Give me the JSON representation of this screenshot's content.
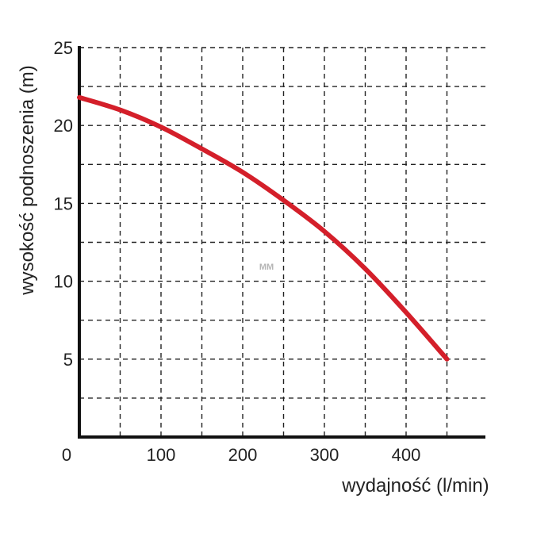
{
  "chart_data": {
    "type": "line",
    "title": "",
    "xlabel": "wydajność (l/min)",
    "ylabel": "wysokość podnoszenia (m)",
    "xlim": [
      0,
      500
    ],
    "ylim": [
      0,
      25
    ],
    "x_ticks": [
      0,
      100,
      200,
      300,
      400
    ],
    "x_tick_labels": [
      "0",
      "100",
      "200",
      "300",
      "400"
    ],
    "y_ticks": [
      5,
      10,
      15,
      20,
      25
    ],
    "y_tick_labels": [
      "5",
      "10",
      "15",
      "20",
      "25"
    ],
    "x_grid": [
      50,
      100,
      150,
      200,
      250,
      300,
      350,
      400,
      450
    ],
    "y_grid": [
      2.5,
      5,
      7.5,
      10,
      12.5,
      15,
      17.5,
      20,
      22.5,
      25
    ],
    "grid": true,
    "series": [
      {
        "color": "#d41f2a",
        "x": [
          0,
          50,
          100,
          150,
          200,
          250,
          300,
          350,
          400,
          450
        ],
        "y": [
          21.8,
          21.0,
          19.9,
          18.5,
          17.0,
          15.2,
          13.2,
          10.8,
          8.0,
          5.0
        ]
      }
    ]
  },
  "watermark": "MM"
}
